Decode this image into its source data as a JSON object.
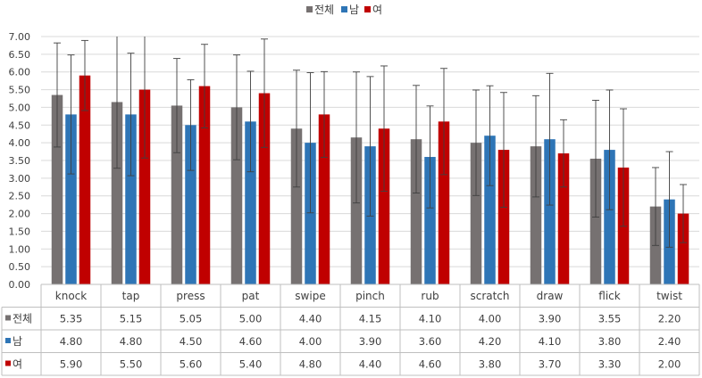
{
  "chart_data": {
    "type": "bar",
    "categories": [
      "knock",
      "tap",
      "press",
      "pat",
      "swipe",
      "pinch",
      "rub",
      "scratch",
      "draw",
      "flick",
      "twist"
    ],
    "series": [
      {
        "name": "전체",
        "color": "#767171",
        "values": [
          5.35,
          5.15,
          5.05,
          5.0,
          4.4,
          4.15,
          4.1,
          4.0,
          3.9,
          3.55,
          2.2
        ],
        "error": [
          1.47,
          1.87,
          1.33,
          1.48,
          1.65,
          1.85,
          1.52,
          1.49,
          1.43,
          1.65,
          1.1
        ],
        "labels": [
          "5.35",
          "5.15",
          "5.05",
          "5.00",
          "4.40",
          "4.15",
          "4.10",
          "4.00",
          "3.90",
          "3.55",
          "2.20"
        ]
      },
      {
        "name": "남",
        "color": "#2e75b6",
        "values": [
          4.8,
          4.8,
          4.5,
          4.6,
          4.0,
          3.9,
          3.6,
          4.2,
          4.1,
          3.8,
          2.4
        ],
        "error": [
          1.68,
          1.73,
          1.28,
          1.42,
          1.98,
          1.97,
          1.44,
          1.41,
          1.86,
          1.69,
          1.35
        ],
        "labels": [
          "4.80",
          "4.80",
          "4.50",
          "4.60",
          "4.00",
          "3.90",
          "3.60",
          "4.20",
          "4.10",
          "3.80",
          "2.40"
        ]
      },
      {
        "name": "여",
        "color": "#c00000",
        "values": [
          5.9,
          5.5,
          5.6,
          5.4,
          4.8,
          4.4,
          4.6,
          3.8,
          3.7,
          3.3,
          2.0
        ],
        "error": [
          0.99,
          1.93,
          1.18,
          1.53,
          1.21,
          1.77,
          1.5,
          1.62,
          0.95,
          1.66,
          0.82
        ],
        "labels": [
          "5.90",
          "5.50",
          "5.60",
          "5.40",
          "4.80",
          "4.40",
          "4.60",
          "3.80",
          "3.70",
          "3.30",
          "2.00"
        ]
      }
    ],
    "ylim": [
      0,
      7
    ],
    "yticks": [
      "0.00",
      "0.50",
      "1.00",
      "1.50",
      "2.00",
      "2.50",
      "3.00",
      "3.50",
      "4.00",
      "4.50",
      "5.00",
      "5.50",
      "6.00",
      "6.50",
      "7.00"
    ],
    "grid": true,
    "legend_position": "top-center",
    "data_table": true
  }
}
